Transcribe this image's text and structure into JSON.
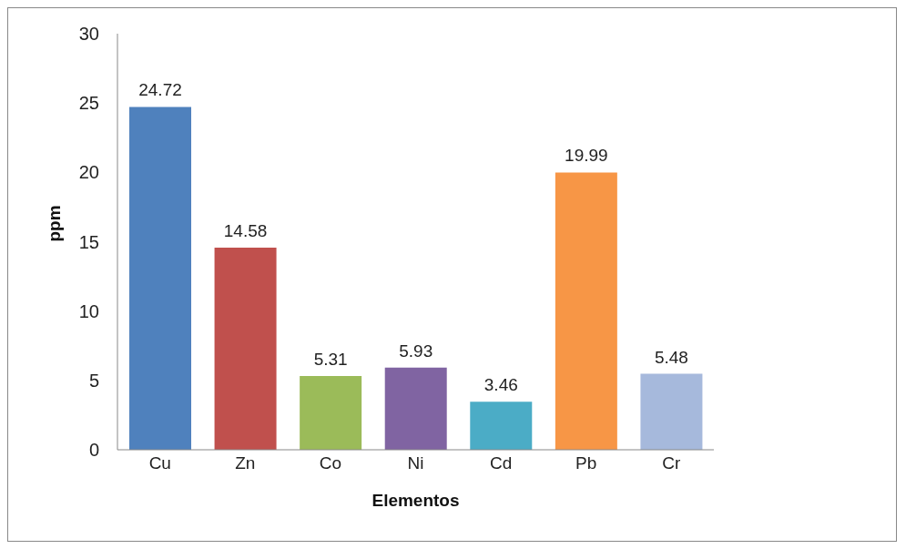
{
  "chart_data": {
    "type": "bar",
    "xlabel": "Elementos",
    "ylabel": "ppm",
    "categories": [
      "Cu",
      "Zn",
      "Co",
      "Ni",
      "Cd",
      "Pb",
      "Cr"
    ],
    "values": [
      24.72,
      14.58,
      5.31,
      5.93,
      3.46,
      19.99,
      5.48
    ],
    "colors": [
      "#4f81bd",
      "#c0504d",
      "#9bbb59",
      "#8064a2",
      "#4bacc6",
      "#f79646",
      "#a6b9dc"
    ],
    "ylim": [
      0,
      30
    ],
    "yticks": [
      0,
      5,
      10,
      15,
      20,
      25,
      30
    ],
    "grid": false,
    "legend": false,
    "data_labels": true
  }
}
